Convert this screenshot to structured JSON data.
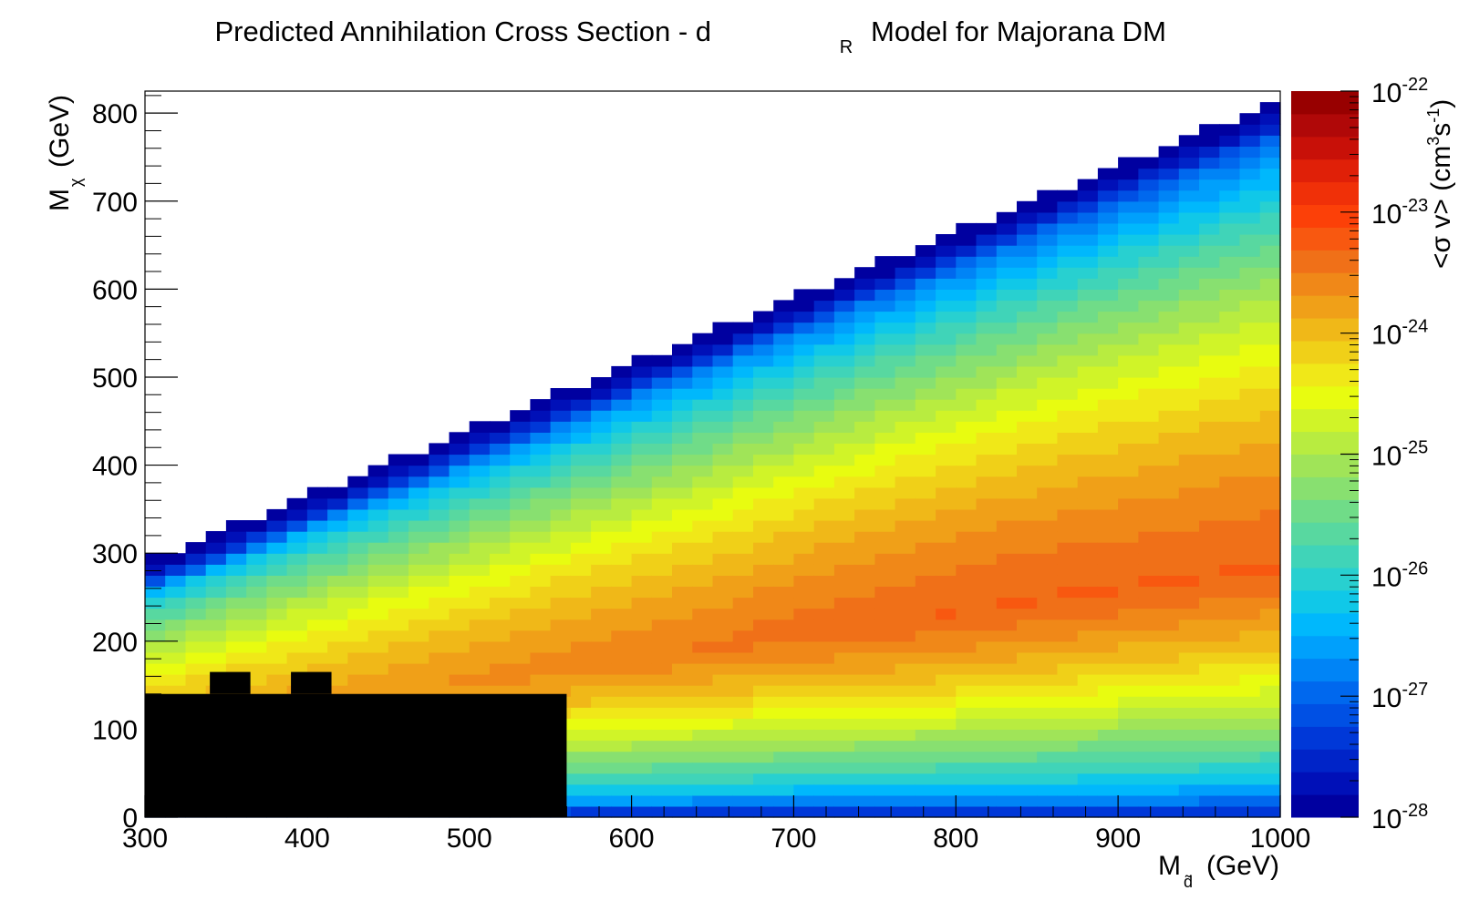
{
  "chart_data": {
    "type": "heatmap",
    "title": {
      "main": "Predicted Annihilation Cross Section - d",
      "sub": "R",
      "rest": "Model for Majorana DM"
    },
    "xlabel": {
      "main": "M",
      "sub": "d̃",
      "unit": "(GeV)"
    },
    "ylabel": {
      "main": "M",
      "sub": "χ",
      "unit": "(GeV)"
    },
    "zlabel": {
      "pre": "<σ v> (cm",
      "sup1": "3",
      "mid": "s",
      "sup2": "-1",
      "post": ")"
    },
    "xlim": [
      300,
      1000
    ],
    "ylim": [
      0,
      825
    ],
    "x_ticks": [
      "300",
      "400",
      "500",
      "600",
      "700",
      "800",
      "900",
      "1000"
    ],
    "y_ticks": [
      "0",
      "100",
      "200",
      "300",
      "400",
      "500",
      "600",
      "700",
      "800"
    ],
    "z_scale": "log",
    "zlim_log10": [
      -28,
      -22
    ],
    "z_ticks": [
      {
        "base": "10",
        "exp": "-28"
      },
      {
        "base": "10",
        "exp": "-27"
      },
      {
        "base": "10",
        "exp": "-26"
      },
      {
        "base": "10",
        "exp": "-25"
      },
      {
        "base": "10",
        "exp": "-24"
      },
      {
        "base": "10",
        "exp": "-23"
      },
      {
        "base": "10",
        "exp": "-22"
      }
    ],
    "allowed_region": "M_chi < 0.75*(M_d - 300) + 290 (white above the boundary)",
    "excluded_black_cells": [
      {
        "x0": 300,
        "x1": 560,
        "y0": 0,
        "y1": 140
      },
      {
        "x0": 340,
        "x1": 365,
        "y0": 140,
        "y1": 165
      },
      {
        "x0": 390,
        "x1": 415,
        "y0": 140,
        "y1": 165
      }
    ],
    "palette": [
      "#0000a0",
      "#0010b8",
      "#0024c8",
      "#0038d8",
      "#0050e4",
      "#0068ee",
      "#0084f6",
      "#00a0fc",
      "#00b8fc",
      "#10c8e8",
      "#28d0d0",
      "#40d4b8",
      "#58d8a0",
      "#70dc88",
      "#88e070",
      "#a0e458",
      "#b8ec40",
      "#d0f428",
      "#e8fc10",
      "#f0e818",
      "#f0d018",
      "#f0b818",
      "#f0a018",
      "#f08818",
      "#f07018",
      "#f85810",
      "#fc4008",
      "#f03008",
      "#e02008",
      "#c81008",
      "#b00808",
      "#980000"
    ]
  }
}
